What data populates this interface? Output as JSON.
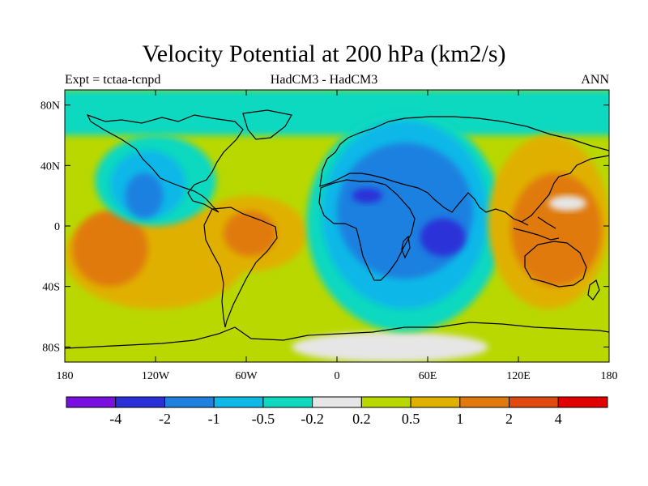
{
  "title": "Velocity Potential at 200 hPa (km2/s)",
  "subtitle_left": "Expt = tctaa-tcnpd",
  "subtitle_center": "HadCM3 - HadCM3",
  "subtitle_right": "ANN",
  "map": {
    "projection": "cylindrical-equidistant",
    "lon_range": [
      -180,
      180
    ],
    "lat_range": [
      -90,
      90
    ],
    "x_ticks": [
      {
        "lon": -180,
        "label": "180"
      },
      {
        "lon": -120,
        "label": "120W"
      },
      {
        "lon": -60,
        "label": "60W"
      },
      {
        "lon": 0,
        "label": "0"
      },
      {
        "lon": 60,
        "label": "60E"
      },
      {
        "lon": 120,
        "label": "120E"
      },
      {
        "lon": 180,
        "label": "180"
      }
    ],
    "y_ticks": [
      {
        "lat": 80,
        "label": "80N"
      },
      {
        "lat": 40,
        "label": "40N"
      },
      {
        "lat": 0,
        "label": "0"
      },
      {
        "lat": -40,
        "label": "40S"
      },
      {
        "lat": -80,
        "label": "80S"
      }
    ],
    "background_level_color": "#b8d800"
  },
  "colorbar": {
    "colors": [
      "#7a10e0",
      "#2a30d8",
      "#1f80e0",
      "#10b8e8",
      "#10d8c0",
      "#e6e6e6",
      "#b8d800",
      "#e0b000",
      "#e07a10",
      "#e04a10",
      "#e00000"
    ],
    "labels": [
      "-4",
      "-2",
      "-1",
      "-0.5",
      "-0.2",
      "0.2",
      "0.5",
      "1",
      "2",
      "4"
    ]
  },
  "chart_data": {
    "type": "heatmap",
    "title": "Velocity Potential at 200 hPa (km2/s)",
    "variable": "velocity potential difference",
    "units": "km2/s",
    "experiment": "Expt = tctaa-tcnpd",
    "models": "HadCM3 - HadCM3",
    "season": "ANN",
    "contour_levels": [
      -4,
      -2,
      -1,
      -0.5,
      -0.2,
      0.2,
      0.5,
      1,
      2,
      4
    ],
    "regions": [
      {
        "name": "southern ocean / mid-lat band",
        "lon": [
          -180,
          180
        ],
        "lat": [
          -90,
          70
        ],
        "class": "0.2 to 0.5",
        "color": "#b8d800"
      },
      {
        "name": "north polar cap",
        "lon": [
          -180,
          180
        ],
        "lat": [
          60,
          90
        ],
        "class": "-0.5 to -0.2",
        "color": "#10d8c0"
      },
      {
        "name": "antarctic near-zero",
        "lon": [
          -30,
          100
        ],
        "lat": [
          -90,
          -70
        ],
        "class": "-0.2 to 0.2",
        "color": "#e6e6e6"
      },
      {
        "name": "east Pacific high",
        "lon": [
          -180,
          -60
        ],
        "lat": [
          -55,
          15
        ],
        "class": "0.5 to 1",
        "color": "#e0b000"
      },
      {
        "name": "east Pacific core",
        "lon": [
          -175,
          -125
        ],
        "lat": [
          -40,
          10
        ],
        "class": "1 to 2",
        "color": "#e07a10"
      },
      {
        "name": "South America high",
        "lon": [
          -95,
          -20
        ],
        "lat": [
          -30,
          20
        ],
        "class": "0.5 to 1",
        "color": "#e0b000"
      },
      {
        "name": "South America core",
        "lon": [
          -75,
          -40
        ],
        "lat": [
          -20,
          10
        ],
        "class": "1 to 2",
        "color": "#e07a10"
      },
      {
        "name": "North Pacific / N America low",
        "lon": [
          -160,
          -80
        ],
        "lat": [
          0,
          60
        ],
        "class": "-0.5 to -0.2",
        "color": "#10d8c0"
      },
      {
        "name": "N America low",
        "lon": [
          -150,
          -100
        ],
        "lat": [
          5,
          50
        ],
        "class": "-1 to -0.5",
        "color": "#10b8e8"
      },
      {
        "name": "N America core",
        "lon": [
          -140,
          -115
        ],
        "lat": [
          5,
          35
        ],
        "class": "-2 to -1",
        "color": "#1f80e0"
      },
      {
        "name": "Eurasia / Africa / Indian Ocean low",
        "lon": [
          -20,
          110
        ],
        "lat": [
          -70,
          75
        ],
        "class": "-0.5 to -0.2",
        "color": "#10d8c0"
      },
      {
        "name": "Africa / Indian Ocean low",
        "lon": [
          -10,
          100
        ],
        "lat": [
          -55,
          70
        ],
        "class": "-1 to -0.5",
        "color": "#10b8e8"
      },
      {
        "name": "Africa / Indian Ocean core",
        "lon": [
          0,
          90
        ],
        "lat": [
          -35,
          55
        ],
        "class": "-2 to -1",
        "color": "#1f80e0"
      },
      {
        "name": "North Africa minimum",
        "lon": [
          10,
          30
        ],
        "lat": [
          15,
          25
        ],
        "class": "-4 to -2",
        "color": "#2a30d8"
      },
      {
        "name": "Indian Ocean minimum",
        "lon": [
          55,
          85
        ],
        "lat": [
          -20,
          5
        ],
        "class": "-4 to -2",
        "color": "#2a30d8"
      },
      {
        "name": "West Pacific high",
        "lon": [
          100,
          180
        ],
        "lat": [
          -55,
          60
        ],
        "class": "0.5 to 1",
        "color": "#e0b000"
      },
      {
        "name": "West Pacific core",
        "lon": [
          115,
          175
        ],
        "lat": [
          -40,
          35
        ],
        "class": "1 to 2",
        "color": "#e07a10"
      },
      {
        "name": "near-zero ring Pacific",
        "lon": [
          140,
          165
        ],
        "lat": [
          10,
          20
        ],
        "class": "-0.2 to 0.2",
        "color": "#e6e6e6"
      }
    ]
  }
}
